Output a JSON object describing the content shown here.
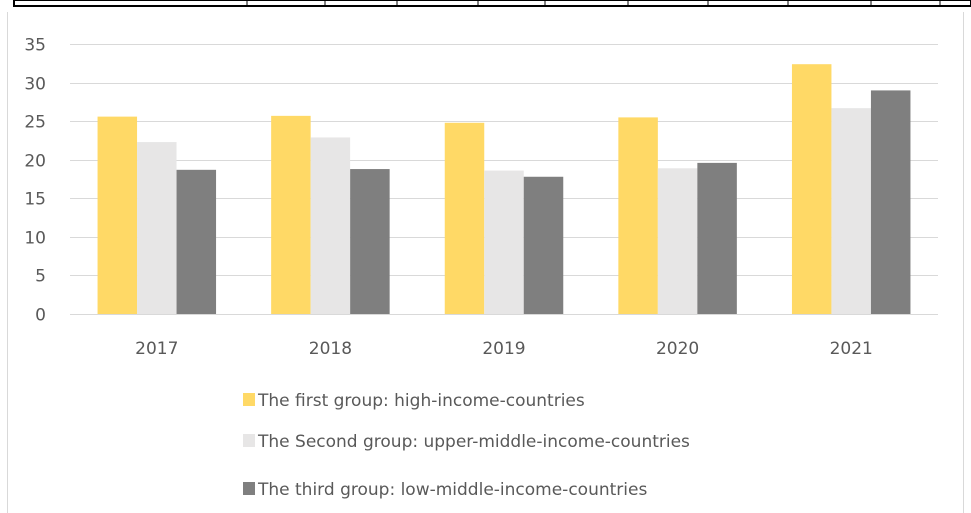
{
  "chart_data": {
    "type": "bar",
    "categories": [
      "2017",
      "2018",
      "2019",
      "2020",
      "2021"
    ],
    "series": [
      {
        "name": "The first group: high-income-countries",
        "color": "#FFD966",
        "values": [
          25.6,
          25.7,
          24.8,
          25.5,
          32.4
        ]
      },
      {
        "name": "The Second group: upper-middle-income-countries",
        "color": "#E7E6E6",
        "values": [
          22.3,
          22.9,
          18.6,
          18.9,
          26.7
        ]
      },
      {
        "name": "The third group: low-middle-income-countries",
        "color": "#7F7F7F",
        "values": [
          18.7,
          18.8,
          17.8,
          19.6,
          29.0
        ]
      }
    ],
    "yticks": [
      0,
      5,
      10,
      15,
      20,
      25,
      30,
      35
    ],
    "ylim": [
      0,
      35
    ],
    "grid": true,
    "legend_position": "bottom",
    "gridline_color": "#D9D9D9",
    "text_color": "#595959"
  }
}
